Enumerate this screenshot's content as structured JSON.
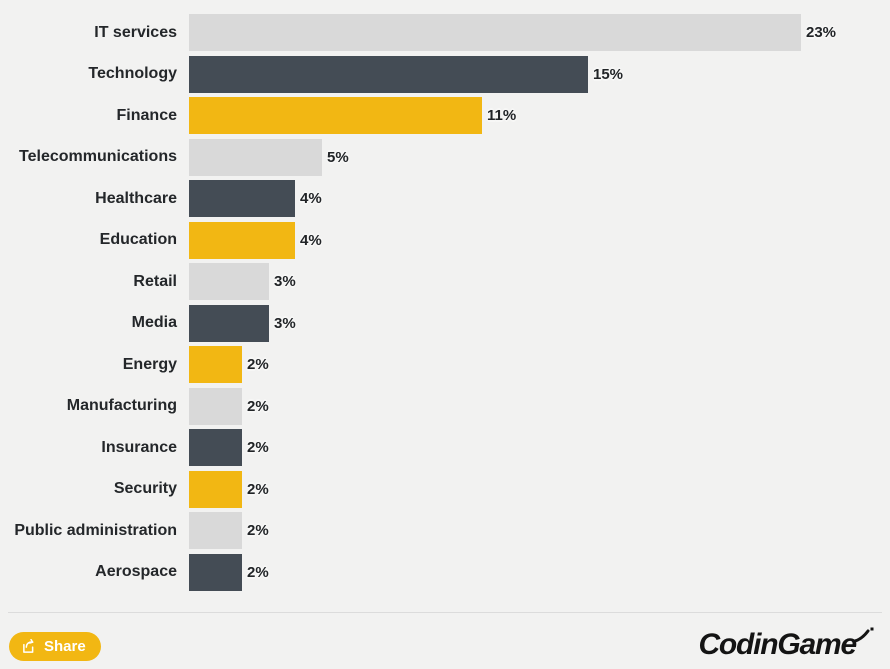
{
  "background": "#f2f2f1",
  "chart_data": {
    "type": "bar",
    "orientation": "horizontal",
    "title": "",
    "xlabel": "",
    "ylabel": "",
    "unit": "%",
    "xlim": [
      0,
      26
    ],
    "grid": false,
    "legend": false,
    "categories": [
      "IT services",
      "Technology",
      "Finance",
      "Telecommunications",
      "Healthcare",
      "Education",
      "Retail",
      "Media",
      "Energy",
      "Manufacturing",
      "Insurance",
      "Security",
      "Public administration",
      "Aerospace"
    ],
    "values": [
      23,
      15,
      11,
      5,
      4,
      4,
      3,
      3,
      2,
      2,
      2,
      2,
      2,
      2
    ],
    "value_labels": [
      "23%",
      "15%",
      "11%",
      "5%",
      "4%",
      "4%",
      "3%",
      "3%",
      "2%",
      "2%",
      "2%",
      "2%",
      "2%",
      "2%"
    ],
    "bar_colors": [
      "#d9d9d9",
      "#444c55",
      "#f2b713",
      "#d9d9d9",
      "#444c55",
      "#f2b713",
      "#d9d9d9",
      "#444c55",
      "#f2b713",
      "#d9d9d9",
      "#444c55",
      "#f2b713",
      "#d9d9d9",
      "#444c55"
    ]
  },
  "colors": {
    "light_gray_bar": "#d9d9d9",
    "dark_bar": "#444c55",
    "yellow_bar": "#f2b713",
    "accent_yellow": "#f2b713",
    "text": "#24272a",
    "divider": "#dcdcdc",
    "logo": "#141414"
  },
  "footer": {
    "share_label": "Share",
    "logo_text": "CodinGame"
  }
}
